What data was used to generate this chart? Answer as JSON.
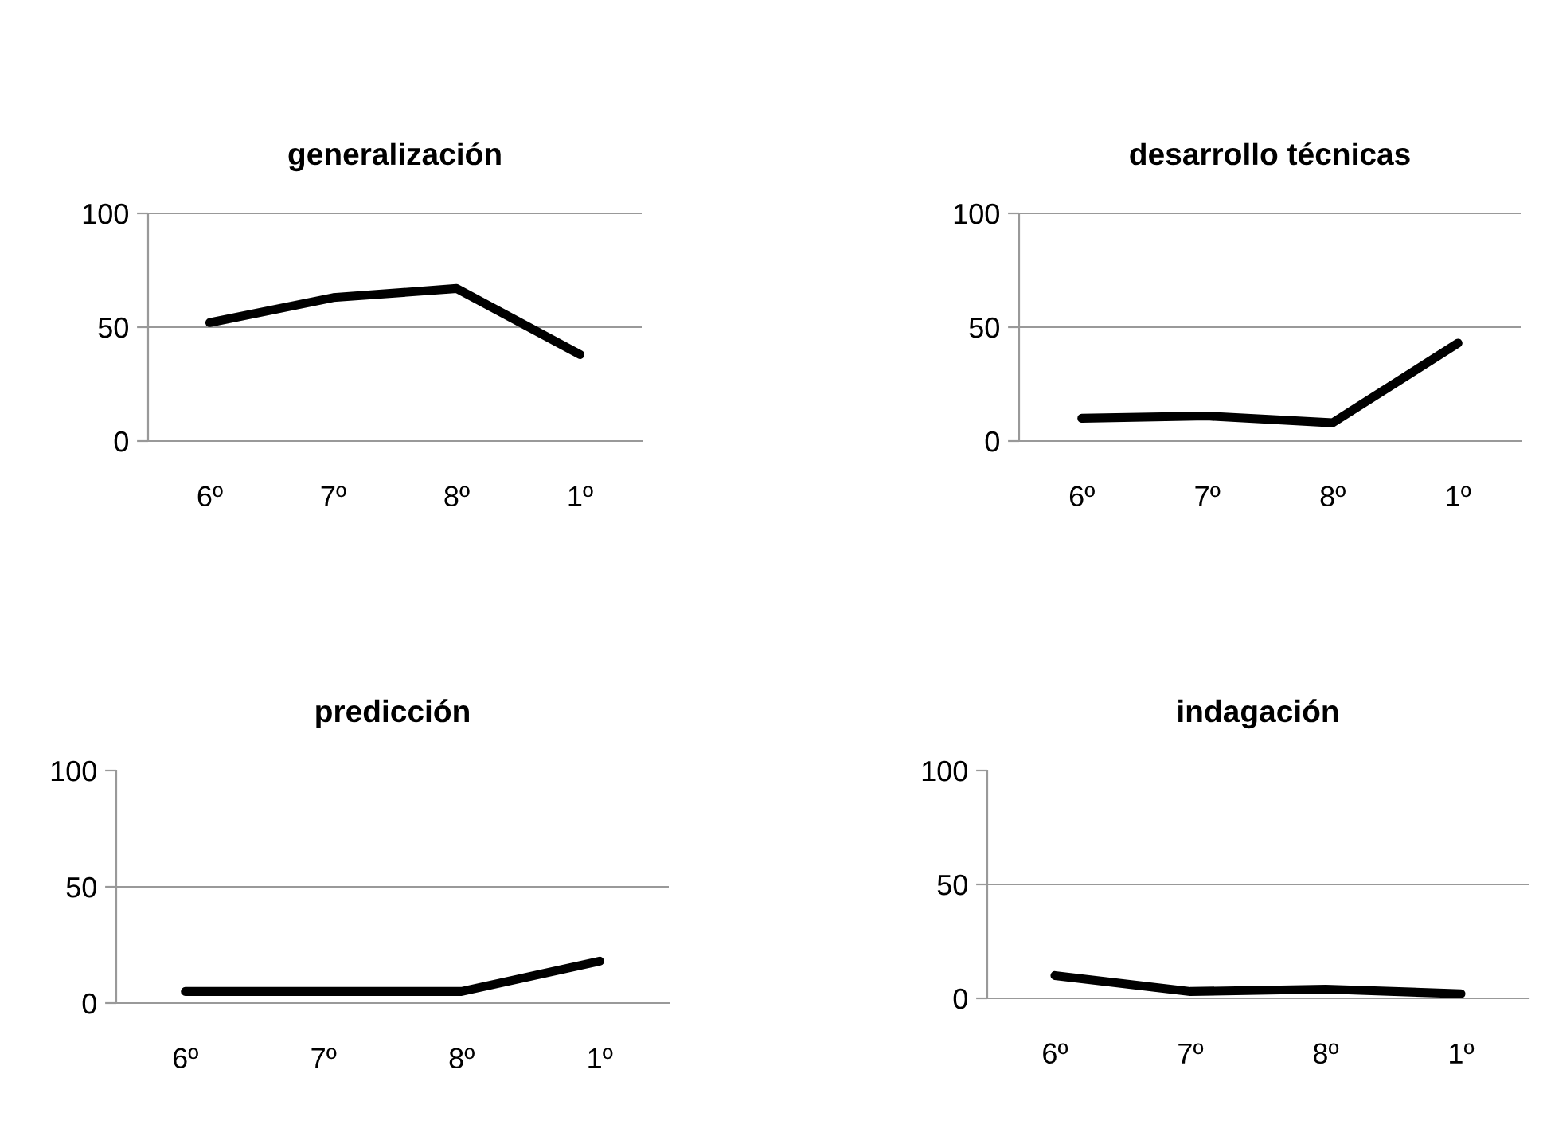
{
  "chart_data": [
    {
      "type": "line",
      "title": "generalización",
      "categories": [
        "6º",
        "7º",
        "8º",
        "1º"
      ],
      "series": [
        {
          "color": "#000000",
          "values": [
            52,
            63,
            67,
            38
          ]
        }
      ],
      "ylim": [
        0,
        100
      ],
      "yticks": [
        0,
        50,
        100
      ],
      "grid": "y",
      "marker": "none",
      "line_style": "solid"
    },
    {
      "type": "line",
      "title": "desarrollo técnicas",
      "categories": [
        "6º",
        "7º",
        "8º",
        "1º"
      ],
      "series": [
        {
          "color": "#000000",
          "values": [
            10,
            11,
            8,
            43
          ]
        }
      ],
      "ylim": [
        0,
        100
      ],
      "yticks": [
        0,
        50,
        100
      ],
      "grid": "y",
      "marker": "none",
      "line_style": "solid"
    },
    {
      "type": "line",
      "title": "predicción",
      "categories": [
        "6º",
        "7º",
        "8º",
        "1º"
      ],
      "series": [
        {
          "color": "#000000",
          "values": [
            5,
            5,
            5,
            18
          ]
        }
      ],
      "ylim": [
        0,
        100
      ],
      "yticks": [
        0,
        50,
        100
      ],
      "grid": "y",
      "marker": "none",
      "line_style": "solid"
    },
    {
      "type": "line",
      "title": "indagación",
      "categories": [
        "6º",
        "7º",
        "8º",
        "1º"
      ],
      "series": [
        {
          "color": "#000000",
          "values": [
            10,
            3,
            4,
            2
          ]
        }
      ],
      "ylim": [
        0,
        100
      ],
      "yticks": [
        0,
        50,
        100
      ],
      "grid": "y",
      "marker": "none",
      "line_style": "solid"
    }
  ]
}
